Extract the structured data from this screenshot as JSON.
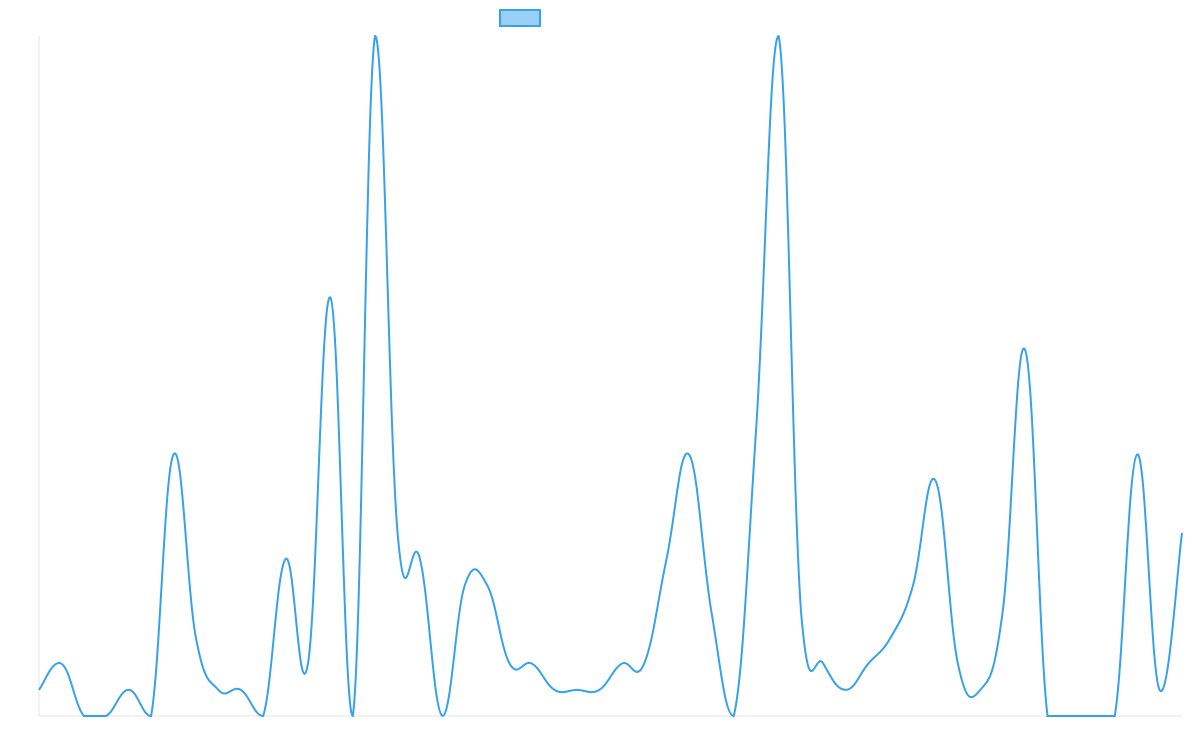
{
  "chart_data": {
    "type": "line",
    "categories": [
      null,
      null,
      null,
      null,
      null,
      null,
      null,
      null,
      null,
      null,
      null,
      null,
      null,
      null,
      null,
      null,
      null,
      null,
      null,
      null,
      null,
      null,
      null,
      null,
      null,
      null,
      null,
      null,
      null,
      null,
      null,
      null,
      null,
      null,
      null,
      null,
      null,
      null,
      null,
      null,
      null,
      null,
      null,
      null,
      null,
      null,
      null,
      null,
      null,
      null,
      null,
      null
    ],
    "values": [
      1,
      2,
      0,
      0,
      1,
      0,
      10,
      3,
      1,
      1,
      0,
      6,
      2,
      16,
      0,
      26,
      7,
      6,
      0,
      5,
      5,
      2,
      2,
      1,
      1,
      1,
      2,
      2,
      6,
      10,
      4,
      0,
      11,
      26,
      4,
      2,
      1,
      2,
      3,
      5,
      9,
      2,
      1,
      4,
      14,
      0,
      0,
      0,
      0,
      10,
      1,
      7
    ],
    "color": "#36a2eb",
    "ylim": [
      0,
      26
    ]
  }
}
